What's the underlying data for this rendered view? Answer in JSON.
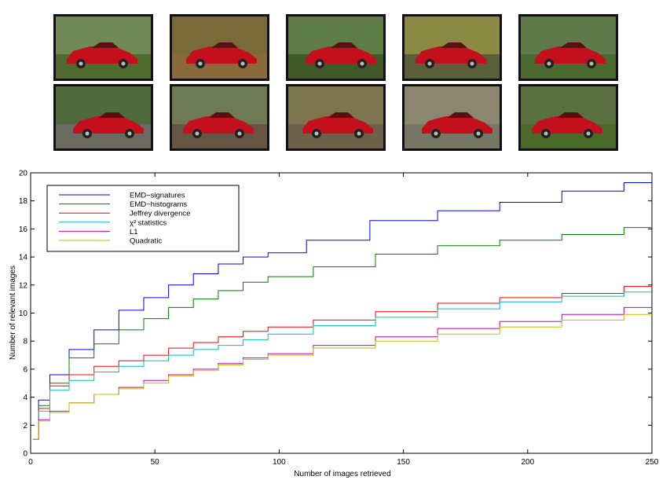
{
  "thumbnails": {
    "count": 10,
    "subject": "red car",
    "rows": [
      [
        "car-photo-1",
        "car-photo-2",
        "car-photo-3",
        "car-photo-4",
        "car-photo-5"
      ],
      [
        "car-photo-6",
        "car-photo-7",
        "car-photo-8",
        "car-photo-9",
        "car-photo-10"
      ]
    ]
  },
  "chart_data": {
    "type": "line",
    "xlabel": "Number of images retrieved",
    "ylabel": "Number of relevant images",
    "xlim": [
      0,
      250
    ],
    "ylim": [
      0,
      20
    ],
    "xticks": [
      0,
      50,
      100,
      150,
      200,
      250
    ],
    "yticks": [
      0,
      2,
      4,
      6,
      8,
      10,
      12,
      14,
      16,
      18,
      20
    ],
    "grid": false,
    "legend_position": "top-left",
    "series": [
      {
        "name": "EMD−signatures",
        "color": "#0000ff",
        "x": [
          1,
          5,
          10,
          20,
          30,
          40,
          50,
          60,
          70,
          80,
          90,
          100,
          120,
          150,
          175,
          200,
          225,
          250
        ],
        "y": [
          1.0,
          3.8,
          5.6,
          7.4,
          8.8,
          10.2,
          11.1,
          12.0,
          12.8,
          13.5,
          14.0,
          14.3,
          15.2,
          16.6,
          17.3,
          17.9,
          18.7,
          19.3
        ]
      },
      {
        "name": "EMD−histograms",
        "color": "#008000",
        "x": [
          1,
          5,
          10,
          20,
          30,
          40,
          50,
          60,
          70,
          80,
          90,
          100,
          125,
          150,
          175,
          200,
          225,
          250
        ],
        "y": [
          1.0,
          3.4,
          5.0,
          6.8,
          7.8,
          8.8,
          9.6,
          10.4,
          11.0,
          11.6,
          12.2,
          12.6,
          13.3,
          14.2,
          14.8,
          15.2,
          15.6,
          16.1
        ]
      },
      {
        "name": "Jeffrey divergence",
        "color": "#ff0000",
        "x": [
          1,
          5,
          10,
          20,
          30,
          40,
          50,
          60,
          70,
          80,
          90,
          100,
          125,
          150,
          175,
          200,
          225,
          250
        ],
        "y": [
          1.0,
          3.2,
          4.8,
          5.6,
          6.2,
          6.6,
          7.0,
          7.5,
          7.9,
          8.3,
          8.7,
          9.0,
          9.5,
          10.1,
          10.7,
          11.1,
          11.4,
          11.9
        ]
      },
      {
        "name": "χ² statistics",
        "color": "#00bfbf",
        "x": [
          1,
          5,
          10,
          20,
          30,
          40,
          50,
          60,
          70,
          80,
          90,
          100,
          125,
          150,
          175,
          200,
          225,
          250
        ],
        "y": [
          1.0,
          3.0,
          4.5,
          5.2,
          5.8,
          6.2,
          6.6,
          7.0,
          7.4,
          7.7,
          8.1,
          8.5,
          9.1,
          9.7,
          10.3,
          10.8,
          11.2,
          11.5
        ]
      },
      {
        "name": "L1",
        "color": "#bf00bf",
        "x": [
          1,
          5,
          10,
          20,
          30,
          40,
          50,
          60,
          70,
          80,
          90,
          100,
          125,
          150,
          175,
          200,
          225,
          250
        ],
        "y": [
          1.0,
          2.4,
          3.0,
          3.6,
          4.2,
          4.7,
          5.2,
          5.6,
          6.0,
          6.4,
          6.8,
          7.1,
          7.7,
          8.3,
          8.9,
          9.4,
          9.9,
          10.4
        ]
      },
      {
        "name": "Quadratic",
        "color": "#bfbf00",
        "x": [
          1,
          5,
          10,
          20,
          30,
          40,
          50,
          60,
          70,
          80,
          90,
          100,
          125,
          150,
          175,
          200,
          225,
          250
        ],
        "y": [
          1.0,
          2.3,
          2.9,
          3.6,
          4.2,
          4.6,
          5.0,
          5.5,
          5.9,
          6.3,
          6.7,
          7.0,
          7.5,
          8.0,
          8.5,
          9.0,
          9.5,
          9.9
        ]
      }
    ]
  }
}
